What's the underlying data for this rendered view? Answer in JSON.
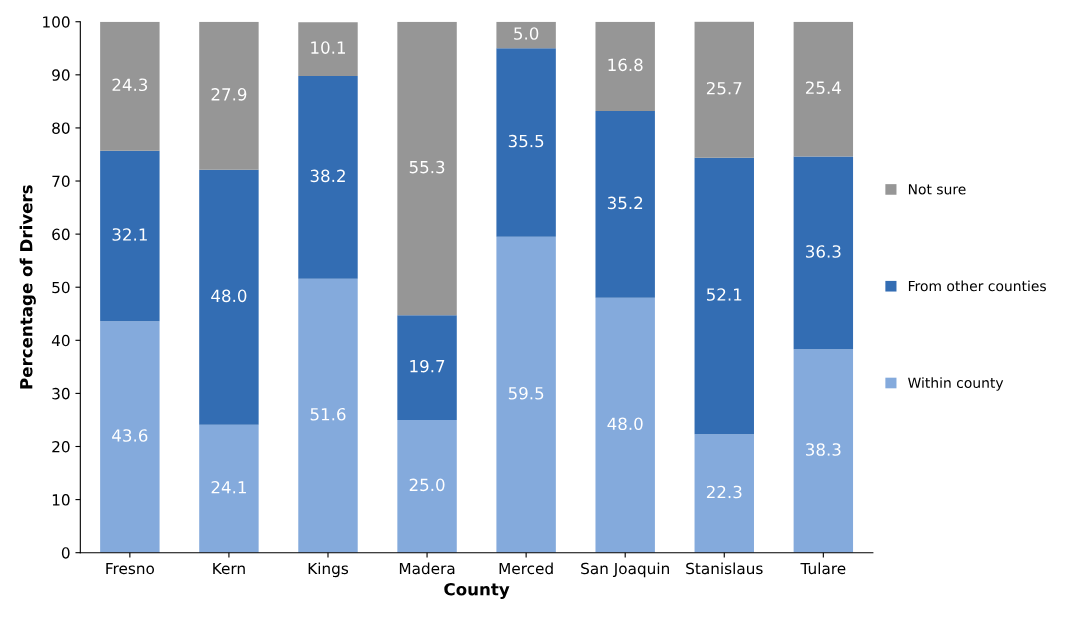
{
  "chart_data": {
    "type": "bar",
    "stacked": true,
    "xlabel": "County",
    "ylabel": "Percentage of Drivers",
    "categories": [
      "Fresno",
      "Kern",
      "Kings",
      "Madera",
      "Merced",
      "San Joaquin",
      "Stanislaus",
      "Tulare"
    ],
    "series": [
      {
        "name": "Within county",
        "color": "#84aadc",
        "values": [
          43.6,
          24.1,
          51.6,
          25.0,
          59.5,
          48.0,
          22.3,
          38.3
        ],
        "value_labels": [
          "43.6",
          "24.1",
          "51.6",
          "25.0",
          "59.5",
          "48.0",
          "22.3",
          "38.3"
        ]
      },
      {
        "name": "From other counties",
        "color": "#336db3",
        "values": [
          32.1,
          48.0,
          38.2,
          19.7,
          35.5,
          35.2,
          52.1,
          36.3
        ],
        "value_labels": [
          "32.1",
          "48.0",
          "38.2",
          "19.7",
          "35.5",
          "35.2",
          "52.1",
          "36.3"
        ]
      },
      {
        "name": "Not sure",
        "color": "#969696",
        "values": [
          24.3,
          27.9,
          10.1,
          55.3,
          5.0,
          16.8,
          25.7,
          25.4
        ],
        "value_labels": [
          "24.3",
          "27.9",
          "10.1",
          "55.3",
          "5.0",
          "16.8",
          "25.7",
          "25.4"
        ]
      }
    ],
    "ylim": [
      0,
      100
    ],
    "yticks": [
      0,
      10,
      20,
      30,
      40,
      50,
      60,
      70,
      80,
      90,
      100
    ],
    "grid": false,
    "legend": "right"
  }
}
